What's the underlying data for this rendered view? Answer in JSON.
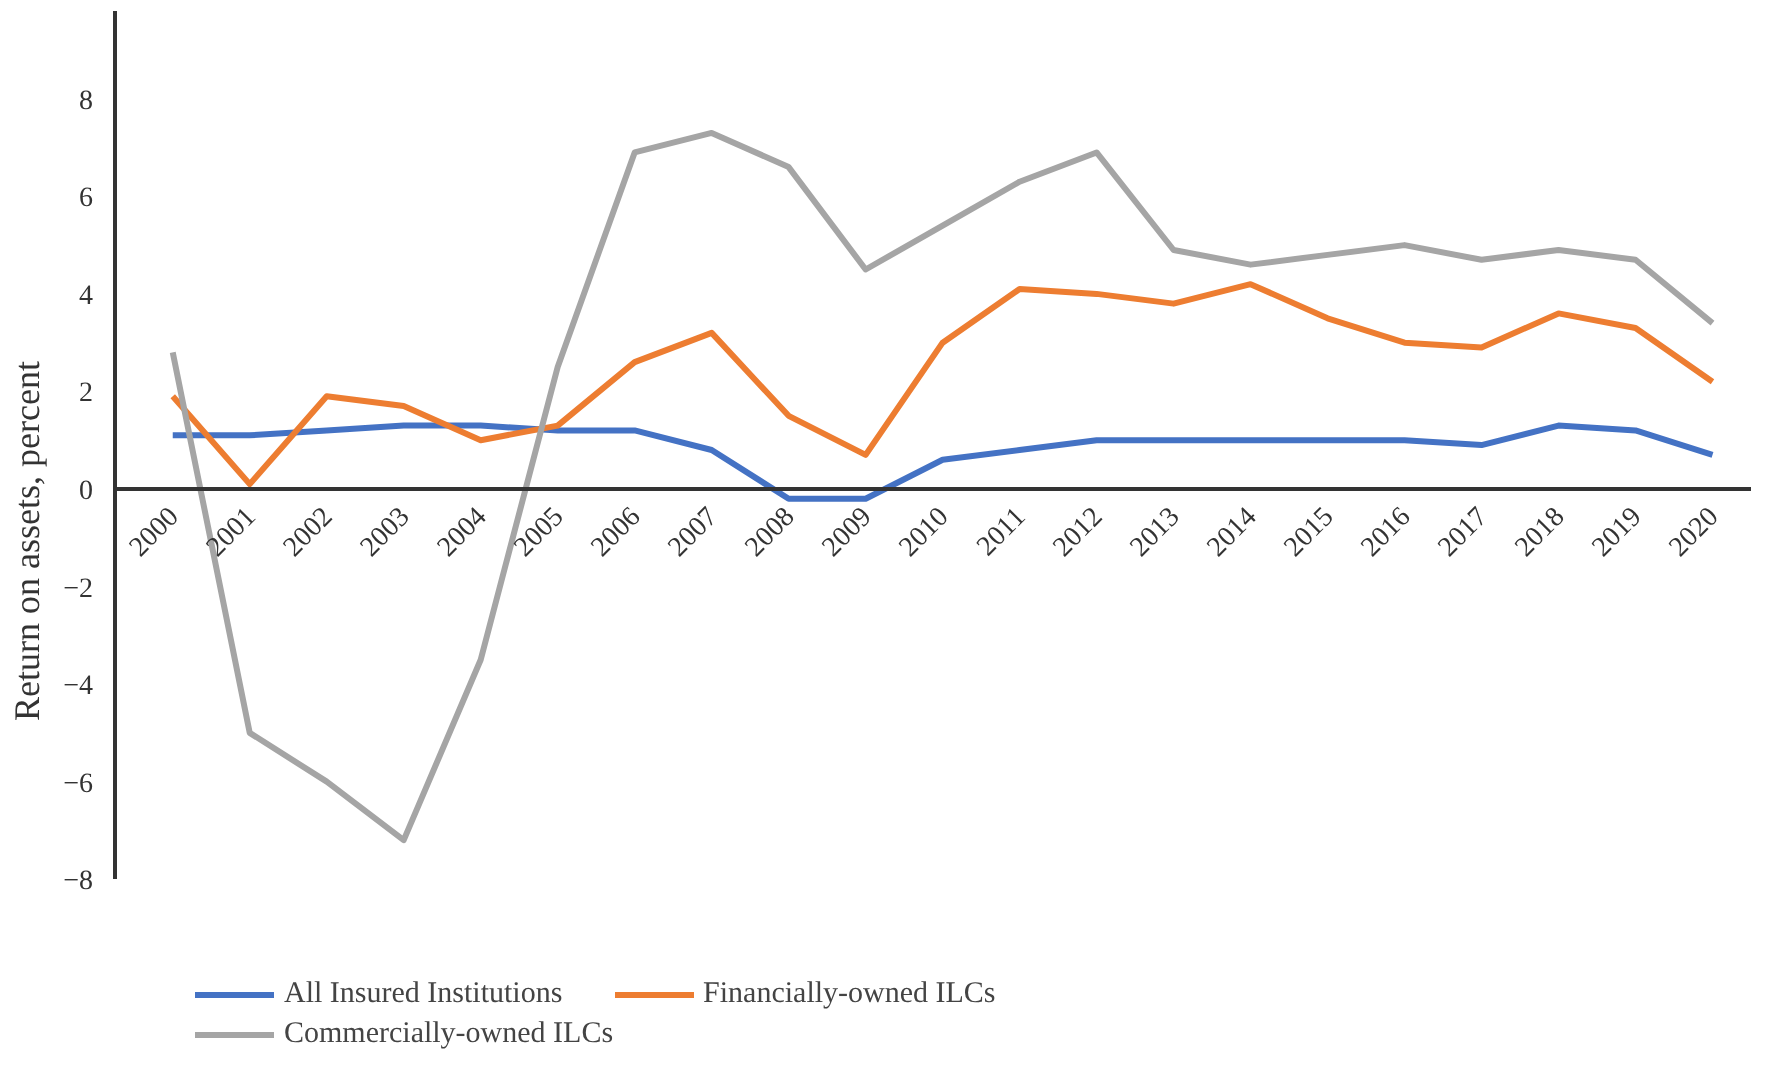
{
  "chart_data": {
    "type": "line",
    "ylabel": "Return on assets, percent",
    "categories": [
      "2000",
      "2001",
      "2002",
      "2003",
      "2004",
      "2005",
      "2006",
      "2007",
      "2008",
      "2009",
      "2010",
      "2011",
      "2012",
      "2013",
      "2014",
      "2015",
      "2016",
      "2017",
      "2018",
      "2019",
      "2020"
    ],
    "series": [
      {
        "name": "All Insured Institutions",
        "color": "#4472c4",
        "values": [
          1.1,
          1.1,
          1.2,
          1.3,
          1.3,
          1.2,
          1.2,
          0.8,
          -0.2,
          -0.2,
          0.6,
          0.8,
          1.0,
          1.0,
          1.0,
          1.0,
          1.0,
          0.9,
          1.3,
          1.2,
          0.7
        ]
      },
      {
        "name": "Financially-owned ILCs",
        "color": "#ed7d31",
        "values": [
          1.9,
          0.1,
          1.9,
          1.7,
          1.0,
          1.3,
          2.6,
          3.2,
          1.5,
          0.7,
          3.0,
          4.1,
          4.0,
          3.8,
          4.2,
          3.5,
          3.0,
          2.9,
          3.6,
          3.3,
          2.2
        ]
      },
      {
        "name": "Commercially-owned ILCs",
        "color": "#a5a5a5",
        "values": [
          2.8,
          -5.0,
          -6.0,
          -7.2,
          -3.5,
          2.5,
          6.9,
          7.3,
          6.6,
          4.5,
          5.4,
          6.3,
          6.9,
          4.9,
          4.6,
          4.8,
          5.0,
          4.7,
          4.9,
          4.7,
          3.4
        ]
      }
    ],
    "ylim": [
      -8,
      9.8
    ],
    "yticks": [
      -8,
      -6,
      -4,
      -2,
      0,
      2,
      4,
      6,
      8
    ],
    "grid": false,
    "legend": "bottom",
    "line_style": "solid",
    "marker": "none"
  }
}
